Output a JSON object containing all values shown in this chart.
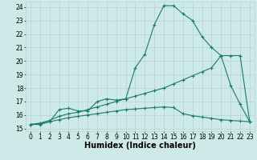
{
  "x_main": [
    0,
    1,
    2,
    3,
    4,
    5,
    6,
    7,
    8,
    9,
    10,
    11,
    12,
    13,
    14,
    15,
    16,
    17,
    18,
    19,
    20,
    21,
    22,
    23
  ],
  "y_main": [
    15.3,
    15.3,
    15.5,
    16.4,
    16.5,
    16.3,
    16.3,
    17.0,
    17.2,
    17.1,
    17.2,
    19.5,
    20.5,
    22.7,
    24.1,
    24.1,
    23.5,
    23.0,
    21.8,
    21.0,
    20.4,
    18.2,
    16.8,
    15.5
  ],
  "x_line1": [
    0,
    1,
    2,
    3,
    4,
    5,
    6,
    7,
    8,
    9,
    10,
    11,
    12,
    13,
    14,
    15,
    16,
    17,
    18,
    19,
    20,
    21,
    22,
    23
  ],
  "y_line1": [
    15.3,
    15.4,
    15.6,
    15.9,
    16.1,
    16.2,
    16.4,
    16.6,
    16.8,
    17.0,
    17.2,
    17.4,
    17.6,
    17.8,
    18.0,
    18.3,
    18.6,
    18.9,
    19.2,
    19.5,
    20.4,
    20.4,
    20.4,
    15.5
  ],
  "x_line2": [
    0,
    1,
    2,
    3,
    4,
    5,
    6,
    7,
    8,
    9,
    10,
    11,
    12,
    13,
    14,
    15,
    16,
    17,
    18,
    19,
    20,
    21,
    22,
    23
  ],
  "y_line2": [
    15.3,
    15.35,
    15.5,
    15.65,
    15.8,
    15.9,
    16.0,
    16.1,
    16.2,
    16.3,
    16.4,
    16.45,
    16.5,
    16.55,
    16.6,
    16.55,
    16.1,
    15.95,
    15.85,
    15.75,
    15.65,
    15.6,
    15.55,
    15.5
  ],
  "color": "#1a7a6e",
  "bg_color": "#ceeae8",
  "grid_color": "#b8d4d2",
  "xlabel": "Humidex (Indice chaleur)",
  "xlim": [
    -0.5,
    23.5
  ],
  "ylim": [
    14.8,
    24.4
  ],
  "yticks": [
    15,
    16,
    17,
    18,
    19,
    20,
    21,
    22,
    23,
    24
  ],
  "xticks": [
    0,
    1,
    2,
    3,
    4,
    5,
    6,
    7,
    8,
    9,
    10,
    11,
    12,
    13,
    14,
    15,
    16,
    17,
    18,
    19,
    20,
    21,
    22,
    23
  ],
  "marker": "+",
  "markersize": 3,
  "linewidth": 0.8,
  "xlabel_fontsize": 7,
  "tick_fontsize": 5.5
}
